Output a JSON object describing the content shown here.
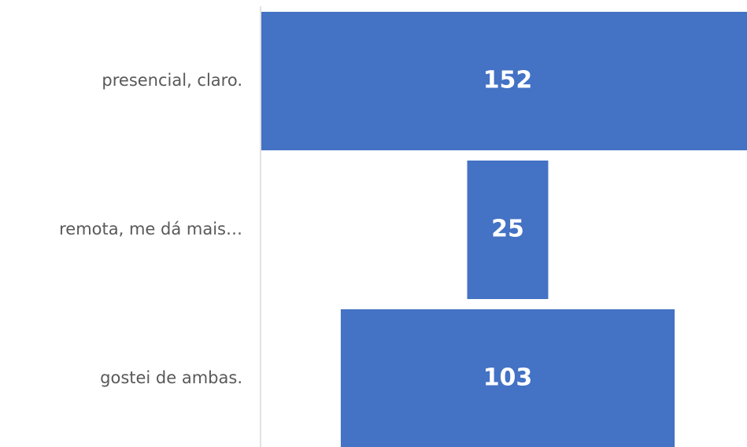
{
  "chart_data": {
    "type": "funnel",
    "categories": [
      "presencial, claro.",
      "remota, me dá mais…",
      "gostei de ambas."
    ],
    "values": [
      152,
      25,
      103
    ],
    "color": "#4472c4"
  }
}
